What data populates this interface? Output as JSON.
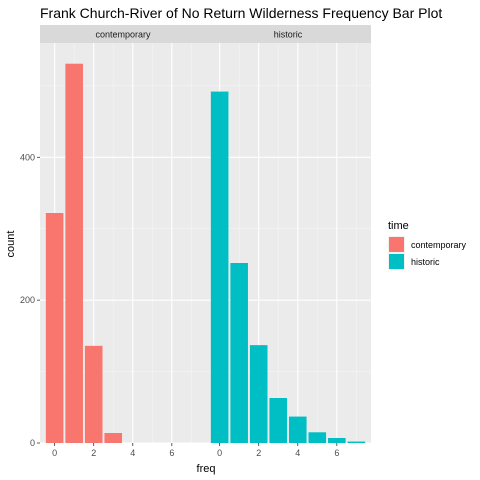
{
  "chart_data": {
    "type": "bar",
    "title": "Frank Church-River of No Return Wilderness Frequency Bar Plot",
    "xlabel": "freq",
    "ylabel": "count",
    "xlim": [
      -0.75,
      7.75
    ],
    "ylim": [
      0,
      560
    ],
    "x_ticks": [
      0,
      2,
      4,
      6
    ],
    "y_ticks": [
      0,
      200,
      400
    ],
    "grid": true,
    "legend": {
      "title": "time",
      "placement": "right",
      "entries": [
        {
          "label": "contemporary",
          "color": "#F8766D"
        },
        {
          "label": "historic",
          "color": "#00BFC4"
        }
      ]
    },
    "panels": [
      {
        "strip": "contemporary",
        "color": "#F8766D",
        "x": [
          0,
          1,
          2,
          3
        ],
        "values": [
          322,
          531,
          136,
          14
        ]
      },
      {
        "strip": "historic",
        "color": "#00BFC4",
        "x": [
          0,
          1,
          2,
          3,
          4,
          5,
          6,
          7
        ],
        "values": [
          492,
          252,
          137,
          63,
          37,
          15,
          7,
          2
        ]
      }
    ]
  }
}
